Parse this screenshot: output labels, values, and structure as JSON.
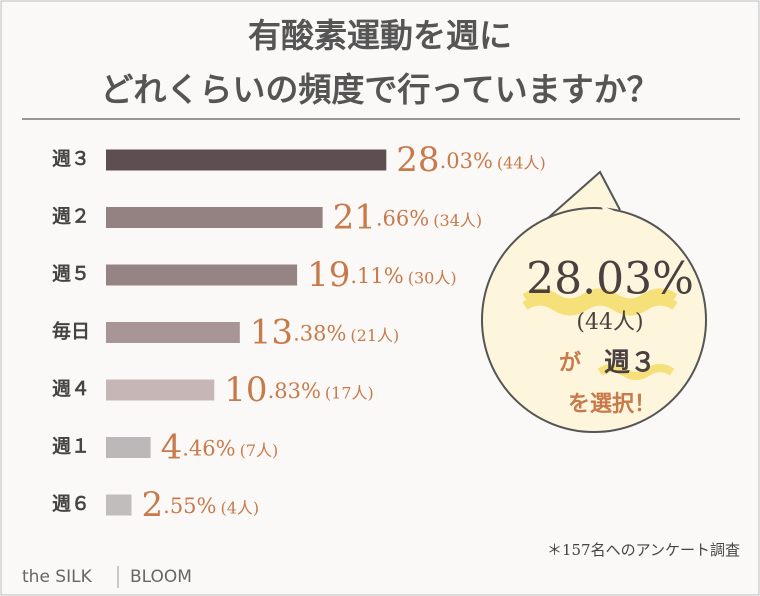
{
  "chart_data": {
    "type": "bar",
    "title_lines": [
      "有酸素運動を週に",
      "どれくらいの頻度で行っていますか？"
    ],
    "categories": [
      "週３",
      "週２",
      "週５",
      "毎日",
      "週４",
      "週１",
      "週６"
    ],
    "values": [
      28.03,
      21.66,
      19.11,
      13.38,
      10.83,
      4.46,
      2.55
    ],
    "value_labels": [
      "28.03%",
      "21.66%",
      "19.11%",
      "13.38%",
      "10.83%",
      "4.46%",
      "2.55%"
    ],
    "counts": [
      44,
      34,
      30,
      21,
      17,
      7,
      4
    ],
    "count_labels": [
      "(44人)",
      "(34人)",
      "(30人)",
      "(21人)",
      "(17人)",
      "(7人)",
      "(4人)"
    ],
    "colors": [
      "#5e4e4f",
      "#948182",
      "#968384",
      "#a89595",
      "#c6b6b6",
      "#bcb7b9",
      "#c1bdbd"
    ],
    "label_color": "#c87a4a",
    "callout": {
      "value_label": "28.03%",
      "count_label": "(44人)",
      "ga": "が",
      "week": "週３",
      "line2": "を選択！"
    },
    "footnote": "＊157名へのアンケート調査",
    "brand": [
      "the SILK",
      "BLOOM"
    ]
  }
}
